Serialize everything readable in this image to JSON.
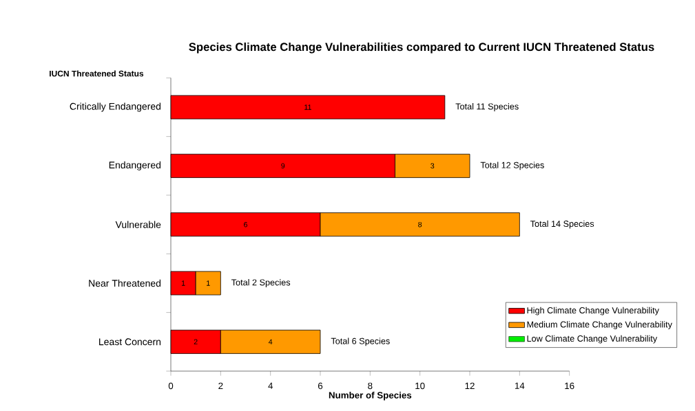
{
  "chart_data": {
    "type": "bar",
    "orientation": "horizontal",
    "stacked": true,
    "title": "Species Climate Change Vulnerabilities compared to Current IUCN Threatened Status",
    "ylabel": "IUCN Threatened Status",
    "xlabel": "Number of Species",
    "categories": [
      "Critically Endangered",
      "Endangered",
      "Vulnerable",
      "Near Threatened",
      "Least Concern"
    ],
    "series": [
      {
        "name": "High Climate Change Vulnerability",
        "color": "#ff0000",
        "values": [
          11,
          9,
          6,
          1,
          2
        ]
      },
      {
        "name": "Medium Climate Change Vulnerability",
        "color": "#ff9900",
        "values": [
          null,
          3,
          8,
          1,
          4
        ]
      },
      {
        "name": "Low Climate Change Vulnerability",
        "color": "#00ee00",
        "values": [
          null,
          null,
          null,
          null,
          null
        ]
      }
    ],
    "totals": [
      "Total 11 Species",
      "Total 12 Species",
      "Total 14 Species",
      "Total 2 Species",
      "Total 6 Species"
    ],
    "data_labels": true,
    "xlim": [
      0,
      16
    ],
    "xticks": [
      0,
      2,
      4,
      6,
      8,
      10,
      12,
      14,
      16
    ],
    "grid": false,
    "legend": "bottom right"
  }
}
